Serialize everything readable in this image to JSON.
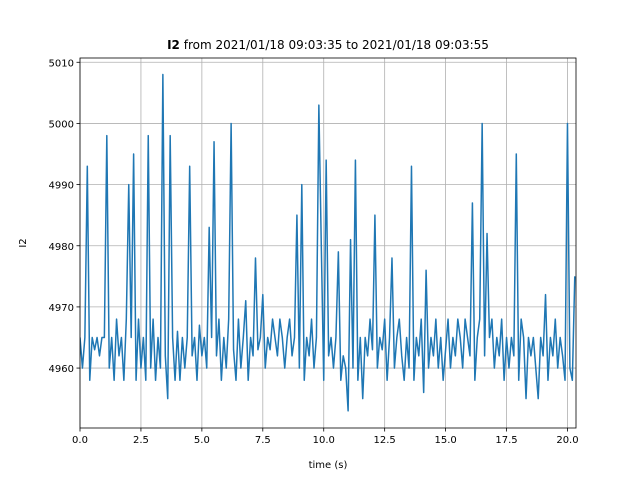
{
  "chart_data": {
    "type": "line",
    "title": [
      "I2",
      "from 2021/01/18 09:03:35 to 2021/01/18 09:03:55"
    ],
    "x_label": "time (s)",
    "y_label": "I2",
    "color": "#1f77b4",
    "grid": true,
    "xlim": [
      0,
      20.35
    ],
    "ylim": [
      4950.2,
      5010.7
    ],
    "xticks": [
      {
        "value": 0,
        "label": "0.0"
      },
      2.5,
      {
        "value": 5,
        "label": "5.0"
      },
      7.5,
      {
        "value": 10,
        "label": "10.0"
      },
      12.5,
      {
        "value": 15,
        "label": "15.0"
      },
      17.5,
      {
        "value": 20,
        "label": "20.0"
      }
    ],
    "yticks": [
      4960,
      4970,
      4980,
      4990,
      5000,
      5010
    ],
    "x": [
      0,
      0.1,
      0.2,
      0.3,
      0.4,
      0.5,
      0.6,
      0.7,
      0.8,
      0.9,
      1,
      1.1,
      1.2,
      1.3,
      1.4,
      1.5,
      1.6,
      1.7,
      1.8,
      1.9,
      2,
      2.1,
      2.2,
      2.3,
      2.4,
      2.5,
      2.6,
      2.7,
      2.8,
      2.9,
      3,
      3.1,
      3.2,
      3.3,
      3.4,
      3.5,
      3.6,
      3.7,
      3.8,
      3.9,
      4,
      4.1,
      4.2,
      4.3,
      4.4,
      4.5,
      4.6,
      4.7,
      4.8,
      4.9,
      5,
      5.1,
      5.2,
      5.3,
      5.4,
      5.5,
      5.6,
      5.7,
      5.8,
      5.9,
      6,
      6.1,
      6.2,
      6.3,
      6.4,
      6.5,
      6.6,
      6.7,
      6.8,
      6.9,
      7,
      7.1,
      7.2,
      7.3,
      7.4,
      7.5,
      7.6,
      7.7,
      7.8,
      7.9,
      8,
      8.1,
      8.2,
      8.3,
      8.4,
      8.5,
      8.6,
      8.7,
      8.8,
      8.9,
      9,
      9.1,
      9.2,
      9.3,
      9.4,
      9.5,
      9.6,
      9.7,
      9.8,
      9.9,
      10,
      10.1,
      10.2,
      10.3,
      10.4,
      10.5,
      10.6,
      10.7,
      10.8,
      10.9,
      11,
      11.1,
      11.2,
      11.3,
      11.4,
      11.5,
      11.6,
      11.7,
      11.8,
      11.9,
      12,
      12.1,
      12.2,
      12.3,
      12.4,
      12.5,
      12.6,
      12.7,
      12.8,
      12.9,
      13,
      13.1,
      13.2,
      13.3,
      13.4,
      13.5,
      13.6,
      13.7,
      13.8,
      13.9,
      14,
      14.1,
      14.2,
      14.3,
      14.4,
      14.5,
      14.6,
      14.7,
      14.8,
      14.9,
      15,
      15.1,
      15.2,
      15.3,
      15.4,
      15.5,
      15.6,
      15.7,
      15.8,
      15.9,
      16,
      16.1,
      16.2,
      16.3,
      16.4,
      16.5,
      16.6,
      16.7,
      16.8,
      16.9,
      17,
      17.1,
      17.2,
      17.3,
      17.4,
      17.5,
      17.6,
      17.7,
      17.8,
      17.9,
      18,
      18.1,
      18.2,
      18.3,
      18.4,
      18.5,
      18.6,
      18.7,
      18.8,
      18.9,
      19,
      19.1,
      19.2,
      19.3,
      19.4,
      19.5,
      19.6,
      19.7,
      19.8,
      19.9,
      20,
      20.1,
      20.2,
      20.3
    ],
    "values": [
      4965,
      4960,
      4965,
      4993,
      4958,
      4965,
      4963,
      4965,
      4962,
      4965,
      4965,
      4998,
      4960,
      4965,
      4958,
      4968,
      4962,
      4965,
      4958,
      4968,
      4990,
      4965,
      4995,
      4958,
      4968,
      4960,
      4965,
      4958,
      4998,
      4960,
      4968,
      4958,
      4965,
      4960,
      5008,
      4962,
      4955,
      4998,
      4965,
      4958,
      4966,
      4958,
      4965,
      4960,
      4965,
      4993,
      4962,
      4965,
      4958,
      4967,
      4962,
      4965,
      4960,
      4983,
      4965,
      4997,
      4962,
      4968,
      4958,
      4965,
      4960,
      4968,
      5000,
      4963,
      4958,
      4968,
      4960,
      4965,
      4971,
      4958,
      4965,
      4962,
      4978,
      4963,
      4965,
      4972,
      4960,
      4965,
      4963,
      4968,
      4965,
      4962,
      4968,
      4965,
      4960,
      4965,
      4968,
      4962,
      4965,
      4985,
      4960,
      4990,
      4958,
      4965,
      4962,
      4968,
      4960,
      4965,
      5003,
      4980,
      4958,
      4994,
      4962,
      4965,
      4960,
      4965,
      4979,
      4958,
      4962,
      4960,
      4953,
      4981,
      4960,
      4994,
      4958,
      4965,
      4955,
      4965,
      4962,
      4968,
      4963,
      4985,
      4960,
      4965,
      4963,
      4968,
      4958,
      4965,
      4978,
      4960,
      4965,
      4968,
      4962,
      4958,
      4965,
      4960,
      4993,
      4958,
      4965,
      4962,
      4968,
      4956,
      4976,
      4960,
      4965,
      4962,
      4968,
      4960,
      4965,
      4958,
      4963,
      4968,
      4960,
      4965,
      4962,
      4968,
      4965,
      4960,
      4968,
      4965,
      4962,
      4987,
      4958,
      4965,
      4968,
      5000,
      4962,
      4982,
      4965,
      4968,
      4960,
      4965,
      4962,
      4968,
      4958,
      4965,
      4960,
      4965,
      4962,
      4995,
      4958,
      4968,
      4965,
      4955,
      4965,
      4962,
      4965,
      4960,
      4955,
      4965,
      4962,
      4972,
      4958,
      4965,
      4962,
      4968,
      4960,
      4965,
      4962,
      4958,
      5000,
      4960,
      4958,
      4975
    ]
  }
}
